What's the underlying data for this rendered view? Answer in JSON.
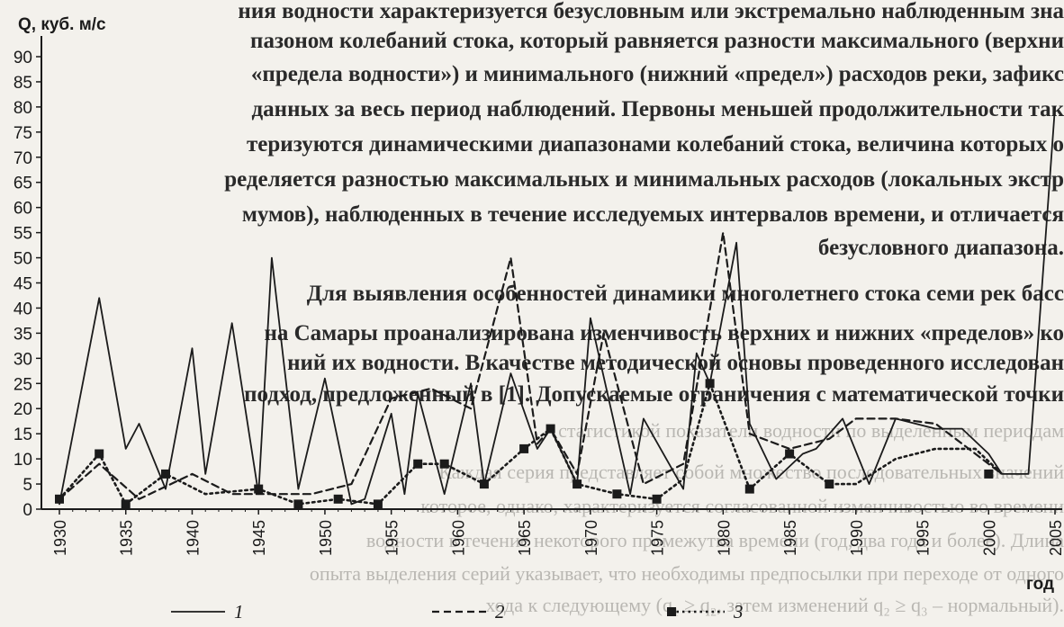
{
  "background_text": [
    "ния водности характеризуется безусловным или экстремально наблюденным зна",
    "пазоном колебаний стока, который равняется разности максимального (верхни",
    "«предела водности») и минимального (нижний «предел») расходов реки, зафикс",
    "данных за весь период наблюдений. Первоны меньшей продолжительности так",
    "теризуются динамическими диапазонами колебаний стока, величина которых о",
    "ределяется разностью максимальных и минимальных расходов (локальных экстр",
    "мумов), наблюденных в течение исследуемых интервалов времени, и отличается",
    "безусловного диапазона.",
    "Для выявления особенностей динамики многолетнего стока семи рек басс",
    "на Самары проанализирована изменчивость верхних и нижних «пределов» ко",
    "ний их водности. В качестве методической основы проведенного исследован",
    "подход, предложенный в [1]. Допускаемые ограничения с математической точки",
    "статистикой показатели водности по выделенным периодам",
    "Каждая серия представляет собой множество последовательных значений",
    "которое, однако, характеризуется согласованной изменчивостью во времени",
    "водности в течение некоторого промежутка времени (год, два года и более). Длина",
    "опыта выделения серий указывает, что необходимы предпосылки при переходе от одного",
    "хода к следующему (q₁ ≥ q₂, затем изменений q₂ ≥ q₃ – нормальный)."
  ],
  "chart_data": {
    "type": "line",
    "ylabel": "Q, куб. м/с",
    "xlabel": "год",
    "ylim": [
      0,
      90
    ],
    "yticks": [
      "0",
      "5",
      "10",
      "15",
      "20",
      "25",
      "30",
      "35",
      "40",
      "45",
      "50",
      "55",
      "60",
      "65",
      "70",
      "75",
      "80",
      "85",
      "90"
    ],
    "xlim": [
      1930,
      2005
    ],
    "xticks": [
      "1930",
      "1935",
      "1940",
      "1945",
      "1950",
      "1955",
      "1960",
      "1965",
      "1970",
      "1975",
      "1980",
      "1985",
      "1990",
      "1995",
      "2000",
      "2005"
    ],
    "series": [
      {
        "name": "1",
        "style": "solid",
        "color": "#1b1b1b",
        "x": [
          1930,
          1933,
          1935,
          1936,
          1938,
          1940,
          1941,
          1943,
          1945,
          1946,
          1948,
          1950,
          1952,
          1953,
          1955,
          1956,
          1957,
          1959,
          1961,
          1962,
          1964,
          1966,
          1967,
          1969,
          1970,
          1973,
          1974,
          1977,
          1978,
          1979,
          1981,
          1982,
          1984,
          1986,
          1987,
          1989,
          1991,
          1993,
          1996,
          1998,
          2000,
          2001,
          2003,
          2005
        ],
        "y": [
          1,
          42,
          12,
          17,
          4,
          32,
          7,
          37,
          3,
          50,
          4,
          26,
          1,
          2,
          19,
          3,
          23,
          3,
          25,
          5,
          27,
          12,
          16,
          5,
          38,
          3,
          18,
          4,
          31,
          25,
          53,
          17,
          6,
          11,
          12,
          18,
          5,
          18,
          16,
          16,
          11,
          7,
          7,
          80
        ]
      },
      {
        "name": "2",
        "style": "dashed",
        "color": "#1b1b1b",
        "x": [
          1930,
          1933,
          1936,
          1940,
          1943,
          1946,
          1949,
          1952,
          1955,
          1958,
          1961,
          1964,
          1966,
          1967,
          1969,
          1971,
          1974,
          1977,
          1980,
          1982,
          1985,
          1988,
          1990,
          1993,
          1996,
          1998,
          2001
        ],
        "y": [
          2,
          9,
          2,
          7,
          3,
          3,
          3,
          5,
          22,
          24,
          20,
          50,
          13,
          16,
          7,
          35,
          5,
          9,
          55,
          15,
          12,
          14,
          18,
          18,
          17,
          13,
          7
        ]
      },
      {
        "name": "3",
        "style": "dotted",
        "color": "#1b1b1b",
        "x": [
          1930,
          1933,
          1935,
          1938,
          1941,
          1945,
          1948,
          1951,
          1954,
          1957,
          1959,
          1962,
          1965,
          1967,
          1969,
          1972,
          1975,
          1977,
          1979,
          1982,
          1985,
          1988,
          1990,
          1993,
          1996,
          1999,
          2001
        ],
        "y": [
          2,
          11,
          1,
          7,
          3,
          4,
          1,
          2,
          1,
          9,
          9,
          5,
          12,
          16,
          5,
          3,
          2,
          6,
          25,
          4,
          11,
          5,
          5,
          10,
          12,
          12,
          7
        ]
      }
    ],
    "markers": {
      "x": [
        1930,
        1933,
        1935,
        1938,
        1945,
        1948,
        1951,
        1954,
        1957,
        1959,
        1962,
        1965,
        1967,
        1969,
        1972,
        1975,
        1979,
        1982,
        1985,
        1988,
        2000
      ],
      "y": [
        2,
        11,
        1,
        7,
        4,
        1,
        2,
        1,
        9,
        9,
        5,
        12,
        16,
        5,
        3,
        2,
        25,
        4,
        11,
        5,
        7
      ]
    },
    "legend": {
      "placement": "bottom",
      "items": [
        {
          "label": "1",
          "style": "solid"
        },
        {
          "label": "2",
          "style": "dashed"
        },
        {
          "label": "3",
          "style": "dotted"
        }
      ]
    },
    "grid": false
  }
}
